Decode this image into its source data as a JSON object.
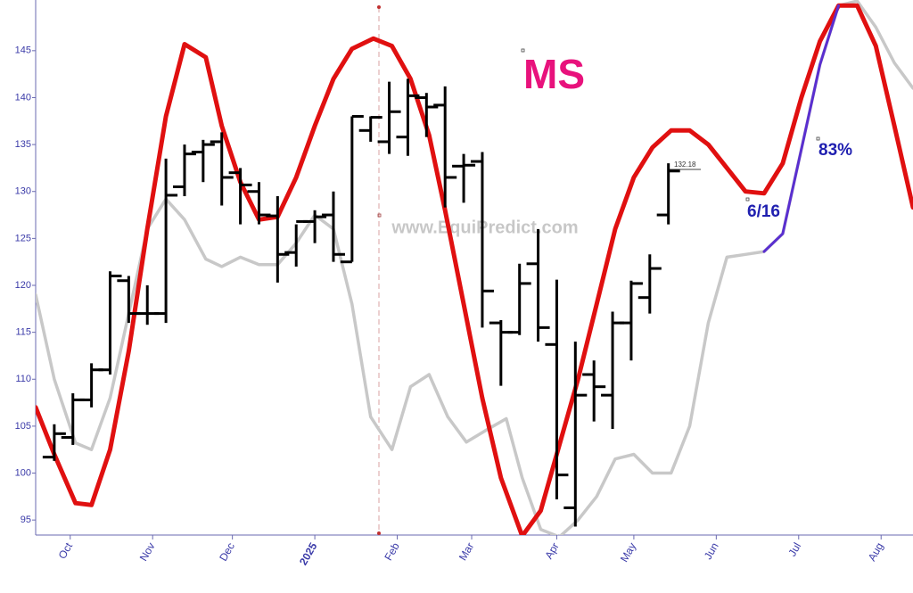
{
  "chart_data": {
    "type": "ohlc",
    "title": "MS",
    "watermark": "www.EquiPredict.com",
    "annotations": [
      "6/16",
      "83%"
    ],
    "last_close_label": "132.18",
    "bar_color": "#000000",
    "year_tick_color": "#a01010",
    "xlim": [
      0,
      330
    ],
    "ylim": [
      93.4,
      150.4
    ],
    "yticks": [
      95,
      100,
      105,
      110,
      115,
      120,
      125,
      130,
      135,
      140,
      145
    ],
    "xticks": [
      {
        "value": 13,
        "label": "Oct"
      },
      {
        "value": 44,
        "label": "Nov"
      },
      {
        "value": 74,
        "label": "Dec"
      },
      {
        "value": 105,
        "label": "2025"
      },
      {
        "value": 136,
        "label": "Feb"
      },
      {
        "value": 164,
        "label": "Mar"
      },
      {
        "value": 196,
        "label": "Apr"
      },
      {
        "value": 225,
        "label": "May"
      },
      {
        "value": 256,
        "label": "Jun"
      },
      {
        "value": 287,
        "label": "Jul"
      },
      {
        "value": 318,
        "label": "Aug"
      }
    ],
    "x": [
      7,
      14,
      21,
      28,
      35,
      42,
      49,
      56,
      63,
      70,
      77,
      84,
      91,
      98,
      105,
      112,
      119,
      126,
      133,
      140,
      147,
      154,
      161,
      168,
      175,
      182,
      189,
      196,
      203,
      210,
      217,
      224,
      231,
      238
    ],
    "high": [
      105.2,
      108.5,
      111.7,
      121.5,
      121,
      120,
      133.5,
      135,
      135.5,
      136.3,
      132.5,
      131,
      129.5,
      126.5,
      128,
      130,
      138,
      138,
      141.7,
      142,
      140.5,
      141.2,
      134,
      134.2,
      116.3,
      122.3,
      126,
      120.6,
      114,
      112,
      117.2,
      120.5,
      123.3,
      133
    ],
    "low": [
      101.3,
      103,
      107,
      110.5,
      116,
      115.8,
      116,
      129.5,
      131,
      128.5,
      126.5,
      126.5,
      120.3,
      122,
      124.5,
      122.5,
      122.5,
      135.3,
      134,
      133.8,
      135.8,
      128.3,
      128.8,
      115.5,
      109.3,
      114.7,
      114,
      97.2,
      94.3,
      105.5,
      104.7,
      112,
      117,
      126.5
    ],
    "open": [
      101.7,
      103.8,
      107.8,
      111,
      120.5,
      117,
      117,
      130.5,
      134.2,
      135.3,
      132,
      130,
      127.4,
      123.5,
      126.8,
      127.5,
      122.5,
      136.5,
      135.3,
      135.8,
      140,
      139.2,
      132.7,
      133.2,
      116,
      115,
      122.3,
      113.7,
      96.3,
      110.5,
      108.3,
      116,
      118.7,
      127.5
    ],
    "close": [
      104.2,
      107.8,
      111,
      121,
      117,
      117,
      129.6,
      134,
      135,
      131.5,
      130.7,
      127.5,
      123.3,
      126.8,
      127.3,
      123.3,
      138,
      137.9,
      138.5,
      140.2,
      139,
      131.5,
      132.8,
      119.4,
      115,
      120.2,
      115.5,
      99.8,
      108.3,
      109.2,
      116,
      120.2,
      121.8,
      132.18
    ],
    "series": [
      {
        "color": "#c8c8c8",
        "x": [
          0,
          7,
          15,
          21,
          28,
          35,
          42,
          49,
          56,
          64,
          70,
          77,
          84,
          91,
          98,
          105,
          112,
          119,
          126,
          134,
          141,
          148,
          155,
          162,
          169,
          177,
          183,
          190,
          197,
          204,
          211,
          218,
          225,
          232,
          239,
          246,
          253,
          260,
          267,
          274,
          281,
          288,
          295,
          302,
          309,
          316,
          323,
          330
        ],
        "values": [
          119,
          110,
          103.2,
          102.5,
          108,
          117,
          126,
          129.2,
          127,
          122.8,
          122,
          123,
          122.2,
          122.2,
          124.5,
          127.5,
          126,
          118,
          106,
          102.5,
          109.2,
          110.5,
          106,
          103.3,
          104.5,
          105.8,
          99.5,
          94,
          93.2,
          95,
          97.5,
          101.5,
          102,
          100,
          100,
          105,
          116,
          123,
          123.3,
          123.6,
          125.5,
          134.5,
          143.5,
          149.8,
          150.3,
          147.5,
          143.7,
          141
        ]
      },
      {
        "color": "#e01010",
        "x": [
          0,
          7,
          15,
          21,
          28,
          35,
          42,
          49,
          56,
          64,
          70,
          77,
          84,
          91,
          98,
          105,
          112,
          119,
          127,
          134,
          141,
          148,
          154,
          161,
          168,
          175,
          183,
          190,
          196,
          204,
          211,
          218,
          225,
          232,
          239,
          246,
          253,
          260,
          267,
          274,
          281,
          288,
          295,
          302,
          309,
          316,
          323,
          330
        ],
        "values": [
          107,
          102,
          96.8,
          96.6,
          102.5,
          113,
          126,
          138,
          145.7,
          144.3,
          137,
          131,
          127,
          127.3,
          131.5,
          137,
          142,
          145.2,
          146.3,
          145.5,
          142,
          136,
          128,
          118,
          108,
          99.5,
          93.3,
          96,
          102,
          110,
          118,
          126,
          131.5,
          134.7,
          136.5,
          136.5,
          135,
          132.5,
          130,
          129.8,
          133,
          140,
          146,
          149.8,
          149.8,
          145.5,
          137,
          128.3
        ]
      },
      {
        "color": "#5a2fd0",
        "x": [
          274,
          281,
          288,
          295,
          302
        ],
        "values": [
          123.6,
          125.5,
          134.5,
          143.5,
          149.8
        ]
      }
    ]
  }
}
